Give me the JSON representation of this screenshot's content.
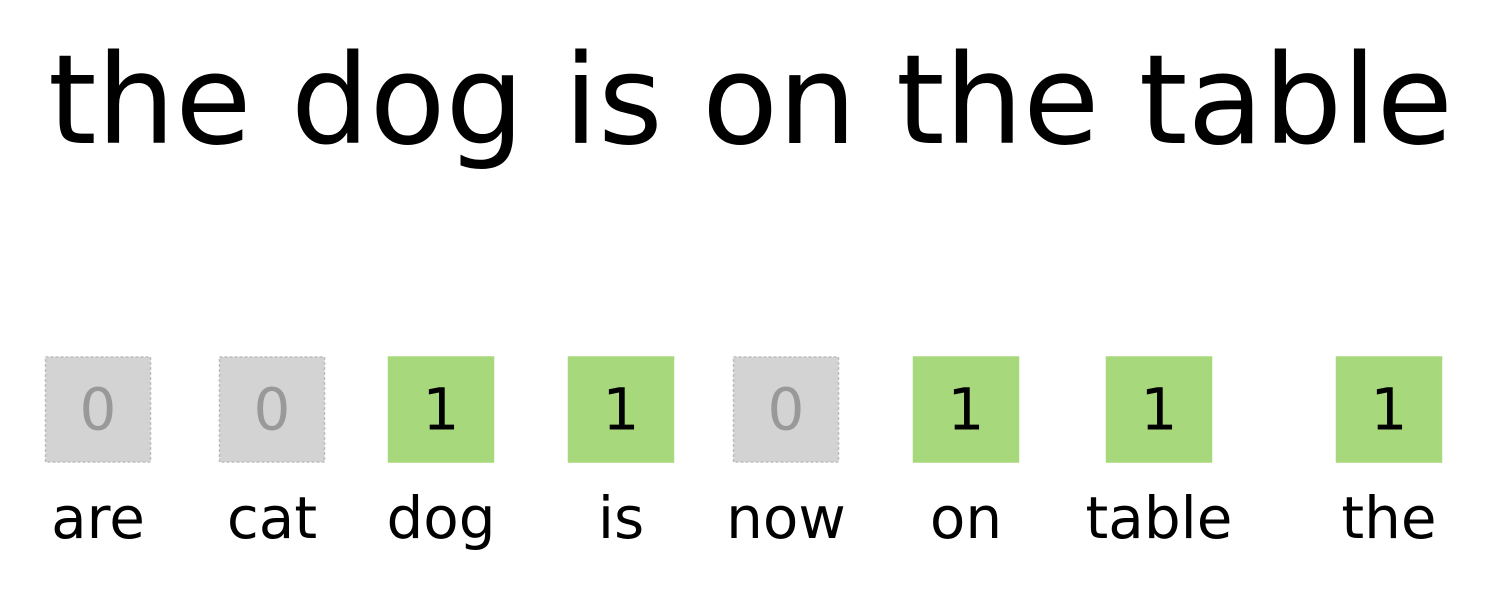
{
  "sentence": "the dog is on the table",
  "items": [
    {
      "word": "are",
      "value": 0
    },
    {
      "word": "cat",
      "value": 0
    },
    {
      "word": "dog",
      "value": 1
    },
    {
      "word": "is",
      "value": 1
    },
    {
      "word": "now",
      "value": 0
    },
    {
      "word": "on",
      "value": 1
    },
    {
      "word": "table",
      "value": 1
    },
    {
      "word": "the",
      "value": 1
    }
  ]
}
